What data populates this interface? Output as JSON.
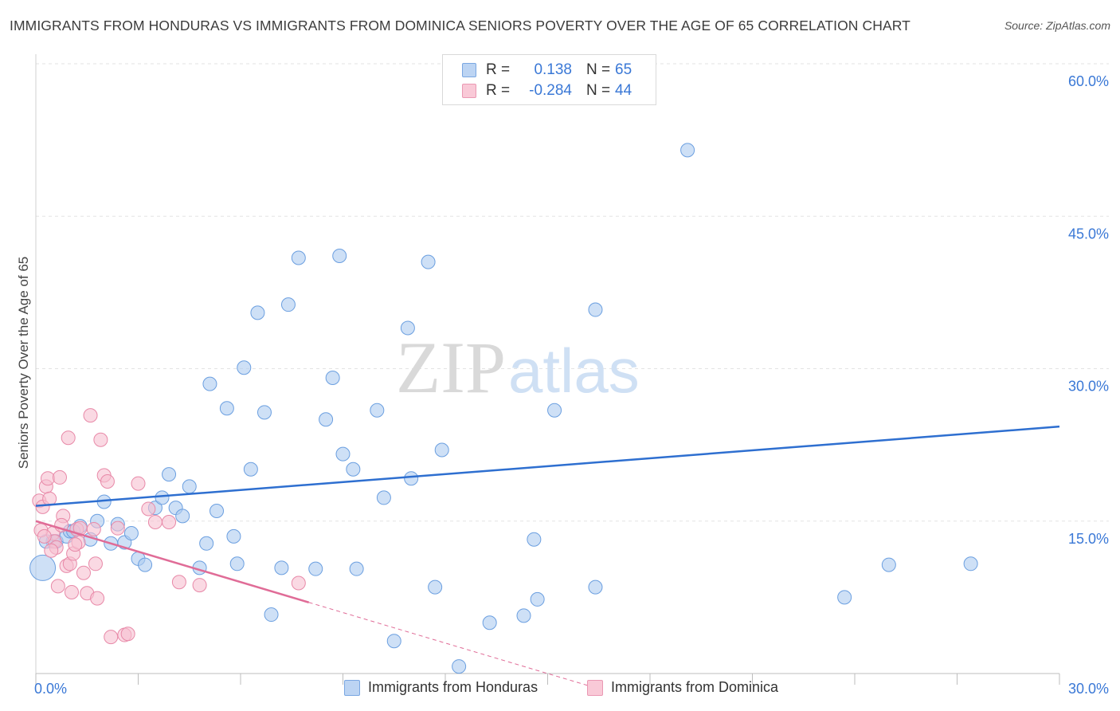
{
  "title": "IMMIGRANTS FROM HONDURAS VS IMMIGRANTS FROM DOMINICA SENIORS POVERTY OVER THE AGE OF 65 CORRELATION CHART",
  "source": "Source: ZipAtlas.com",
  "watermark": {
    "part1": "ZIP",
    "part2": "atlas"
  },
  "legend": {
    "r_label": "R =",
    "n_label": "N =",
    "rows": [
      {
        "r": "0.138",
        "n": "65"
      },
      {
        "r": "-0.284",
        "n": "44"
      }
    ]
  },
  "colors": {
    "honduras_fill": "#aecbf0",
    "honduras_stroke": "#6b9fe0",
    "honduras_line": "#2e6fd0",
    "dominica_fill": "#f7bfd0",
    "dominica_stroke": "#e889a8",
    "dominica_line": "#e06c97",
    "tick_label": "#3a78d6",
    "grid": "#e3e3e3"
  },
  "chart_data": {
    "type": "scatter",
    "title": "IMMIGRANTS FROM HONDURAS VS IMMIGRANTS FROM DOMINICA SENIORS POVERTY OVER THE AGE OF 65 CORRELATION CHART",
    "xlabel": "",
    "ylabel": "Seniors Poverty Over the Age of 65",
    "xlim": [
      0,
      30
    ],
    "ylim": [
      0,
      60
    ],
    "x_tick_labels": [
      "0.0%",
      "30.0%"
    ],
    "y_ticks": [
      15,
      30,
      45,
      60
    ],
    "y_tick_labels": [
      "15.0%",
      "30.0%",
      "45.0%",
      "60.0%"
    ],
    "grid": true,
    "legend_position": "top-center",
    "series": [
      {
        "name": "Immigrants from Honduras",
        "trend": [
          [
            0,
            16.5
          ],
          [
            30,
            24.3
          ]
        ],
        "points": [
          [
            0.2,
            10.4
          ],
          [
            0.5,
            13
          ],
          [
            0.6,
            13
          ],
          [
            0.9,
            13.5
          ],
          [
            1.0,
            14.0
          ],
          [
            1.3,
            14.5
          ],
          [
            1.6,
            13.2
          ],
          [
            1.8,
            15.0
          ],
          [
            2.0,
            16.9
          ],
          [
            2.2,
            12.8
          ],
          [
            2.4,
            14.7
          ],
          [
            2.6,
            12.9
          ],
          [
            2.8,
            13.8
          ],
          [
            3.0,
            11.3
          ],
          [
            3.2,
            10.7
          ],
          [
            3.5,
            16.3
          ],
          [
            3.7,
            17.3
          ],
          [
            3.9,
            19.6
          ],
          [
            4.1,
            16.3
          ],
          [
            4.3,
            15.5
          ],
          [
            4.5,
            18.4
          ],
          [
            4.8,
            10.4
          ],
          [
            5.0,
            12.8
          ],
          [
            5.1,
            28.5
          ],
          [
            5.3,
            16.0
          ],
          [
            5.6,
            26.1
          ],
          [
            5.8,
            13.5
          ],
          [
            5.9,
            10.8
          ],
          [
            6.1,
            30.1
          ],
          [
            6.3,
            20.1
          ],
          [
            6.5,
            35.5
          ],
          [
            6.7,
            25.7
          ],
          [
            6.9,
            5.8
          ],
          [
            7.2,
            10.4
          ],
          [
            7.4,
            36.3
          ],
          [
            7.7,
            40.9
          ],
          [
            8.2,
            10.3
          ],
          [
            8.5,
            25.0
          ],
          [
            8.7,
            29.1
          ],
          [
            8.9,
            41.1
          ],
          [
            9.0,
            21.6
          ],
          [
            9.3,
            20.1
          ],
          [
            9.4,
            10.3
          ],
          [
            10.0,
            25.9
          ],
          [
            10.2,
            17.3
          ],
          [
            10.5,
            3.2
          ],
          [
            10.9,
            34.0
          ],
          [
            11.0,
            19.2
          ],
          [
            11.5,
            40.5
          ],
          [
            11.7,
            8.5
          ],
          [
            11.9,
            22.0
          ],
          [
            12.4,
            0.7
          ],
          [
            13.3,
            5.0
          ],
          [
            14.3,
            5.7
          ],
          [
            14.6,
            13.2
          ],
          [
            14.7,
            7.3
          ],
          [
            15.2,
            25.9
          ],
          [
            16.4,
            35.8
          ],
          [
            16.4,
            8.5
          ],
          [
            19.1,
            51.5
          ],
          [
            23.7,
            7.5
          ],
          [
            25.0,
            10.7
          ],
          [
            27.4,
            10.8
          ],
          [
            0.3,
            13.0
          ],
          [
            1.1,
            14.0
          ]
        ]
      },
      {
        "name": "Immigrants from Dominica",
        "trend": [
          [
            0,
            15.0
          ],
          [
            8.0,
            7.0
          ]
        ],
        "trend_extension": [
          [
            8.0,
            7.0
          ],
          [
            16.5,
            -1.5
          ]
        ],
        "points": [
          [
            0.1,
            17.0
          ],
          [
            0.2,
            16.4
          ],
          [
            0.3,
            18.4
          ],
          [
            0.35,
            19.2
          ],
          [
            0.4,
            17.2
          ],
          [
            0.5,
            13.8
          ],
          [
            0.55,
            13.0
          ],
          [
            0.6,
            12.4
          ],
          [
            0.65,
            8.6
          ],
          [
            0.7,
            19.3
          ],
          [
            0.8,
            15.5
          ],
          [
            0.9,
            10.6
          ],
          [
            0.95,
            23.2
          ],
          [
            1.0,
            10.8
          ],
          [
            1.05,
            8.0
          ],
          [
            1.1,
            11.8
          ],
          [
            1.2,
            14.2
          ],
          [
            1.25,
            12.9
          ],
          [
            1.3,
            14.3
          ],
          [
            1.4,
            9.9
          ],
          [
            1.5,
            7.9
          ],
          [
            1.6,
            25.4
          ],
          [
            1.7,
            14.2
          ],
          [
            1.75,
            10.8
          ],
          [
            1.8,
            7.4
          ],
          [
            1.9,
            23.0
          ],
          [
            2.0,
            19.5
          ],
          [
            2.1,
            18.9
          ],
          [
            2.2,
            3.6
          ],
          [
            2.4,
            14.3
          ],
          [
            2.6,
            3.8
          ],
          [
            2.7,
            3.9
          ],
          [
            3.0,
            18.7
          ],
          [
            3.3,
            16.2
          ],
          [
            3.5,
            14.9
          ],
          [
            3.9,
            14.9
          ],
          [
            4.2,
            9.0
          ],
          [
            4.8,
            8.7
          ],
          [
            7.7,
            8.9
          ],
          [
            0.15,
            14.1
          ],
          [
            0.25,
            13.5
          ],
          [
            0.45,
            12.1
          ],
          [
            0.75,
            14.6
          ],
          [
            1.15,
            12.7
          ]
        ]
      }
    ]
  }
}
